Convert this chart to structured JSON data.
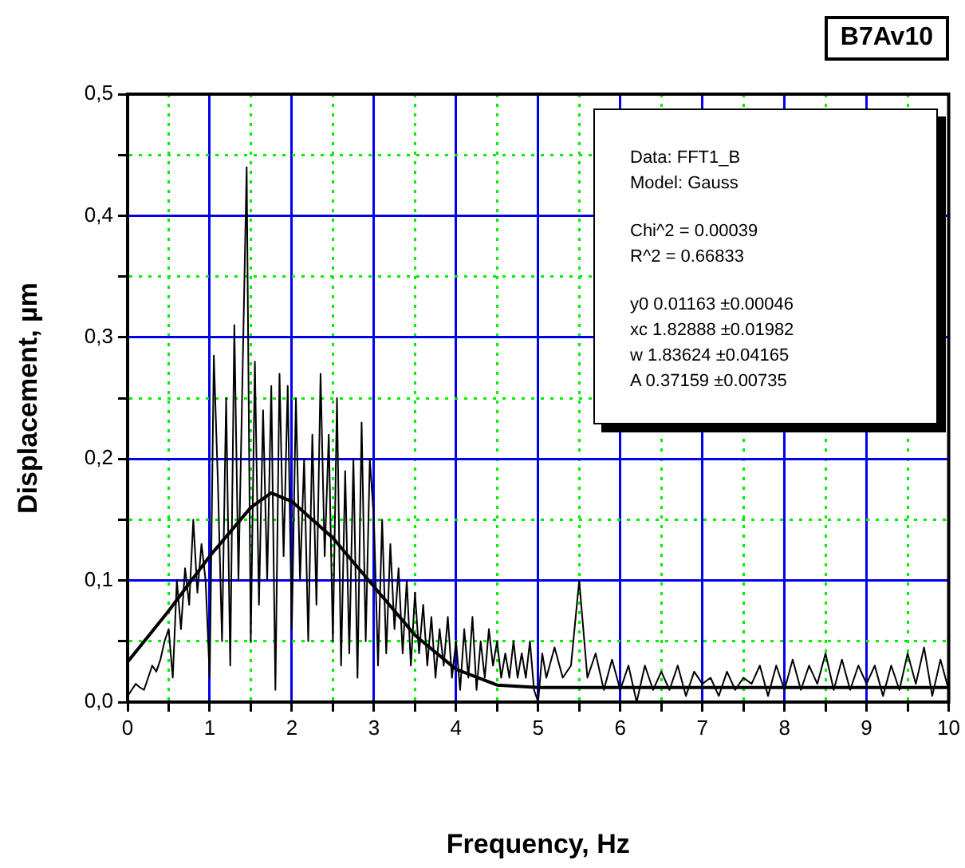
{
  "chart_data": {
    "type": "line",
    "title": "B7Av10",
    "xlabel": "Frequency, Hz",
    "ylabel": "Displacement, µm",
    "xlim": [
      0,
      10
    ],
    "xticks": [
      0,
      {
        "value": 0.5,
        "label": null
      },
      1,
      {
        "value": 1.5,
        "label": null
      },
      2,
      {
        "value": 2.5,
        "label": null
      },
      3,
      {
        "value": 3.5,
        "label": null
      },
      4,
      {
        "value": 4.5,
        "label": null
      },
      5,
      {
        "value": 5.5,
        "label": null
      },
      6,
      {
        "value": 6.5,
        "label": null
      },
      7,
      {
        "value": 7.5,
        "label": null
      },
      8,
      {
        "value": 8.5,
        "label": null
      },
      9,
      {
        "value": 9.5,
        "label": null
      },
      10
    ],
    "ylim": [
      0,
      0.5
    ],
    "yticks": [
      {
        "value": 0,
        "label": "0,0"
      },
      {
        "value": 0.05,
        "label": null
      },
      {
        "value": 0.1,
        "label": "0,1"
      },
      {
        "value": 0.15,
        "label": null
      },
      {
        "value": 0.2,
        "label": "0,2"
      },
      {
        "value": 0.25,
        "label": null
      },
      {
        "value": 0.3,
        "label": "0,3"
      },
      {
        "value": 0.35,
        "label": null
      },
      {
        "value": 0.4,
        "label": "0,4"
      },
      {
        "value": 0.45,
        "label": null
      },
      {
        "value": 0.5,
        "label": "0,5"
      }
    ],
    "grid": true,
    "legend": false,
    "marker": "none",
    "line_style": "solid",
    "annotations": [
      "Data: FFT1_B",
      "Model: Gauss",
      "Chi^2 = 0.00039",
      "R^2 = 0.66833",
      "y0 0.01163 ±0.00046",
      "xc 1.82888 ±0.01982",
      "w 1.83624 ±0.04165",
      "A 0.37159 ±0.00735"
    ],
    "series": [
      {
        "color": "#000000",
        "x": [
          0,
          0.05,
          0.1,
          0.15,
          0.2,
          0.25,
          0.3,
          0.35,
          0.4,
          0.45,
          0.5,
          0.55,
          0.6,
          0.65,
          0.7,
          0.75,
          0.8,
          0.85,
          0.9,
          0.95,
          1.0,
          1.05,
          1.1,
          1.15,
          1.2,
          1.25,
          1.3,
          1.35,
          1.4,
          1.45,
          1.5,
          1.55,
          1.6,
          1.65,
          1.7,
          1.75,
          1.8,
          1.85,
          1.9,
          1.95,
          2.0,
          2.05,
          2.1,
          2.15,
          2.2,
          2.25,
          2.3,
          2.35,
          2.4,
          2.45,
          2.5,
          2.55,
          2.6,
          2.65,
          2.7,
          2.75,
          2.8,
          2.85,
          2.9,
          2.95,
          3.0,
          3.05,
          3.1,
          3.15,
          3.2,
          3.25,
          3.3,
          3.35,
          3.4,
          3.45,
          3.5,
          3.55,
          3.6,
          3.65,
          3.7,
          3.75,
          3.8,
          3.85,
          3.9,
          3.95,
          4.0,
          4.05,
          4.1,
          4.15,
          4.2,
          4.25,
          4.3,
          4.35,
          4.4,
          4.45,
          4.5,
          4.55,
          4.6,
          4.65,
          4.7,
          4.75,
          4.8,
          4.85,
          4.9,
          4.95,
          5.0,
          5.05,
          5.1,
          5.2,
          5.3,
          5.4,
          5.5,
          5.6,
          5.7,
          5.8,
          5.9,
          6.0,
          6.1,
          6.2,
          6.3,
          6.4,
          6.5,
          6.6,
          6.7,
          6.8,
          6.9,
          7.0,
          7.1,
          7.2,
          7.3,
          7.4,
          7.5,
          7.6,
          7.7,
          7.8,
          7.9,
          8.0,
          8.1,
          8.2,
          8.3,
          8.4,
          8.5,
          8.6,
          8.7,
          8.8,
          8.9,
          9.0,
          9.1,
          9.2,
          9.3,
          9.4,
          9.5,
          9.6,
          9.7,
          9.8,
          9.9,
          10.0
        ],
        "values": [
          0.005,
          0.01,
          0.015,
          0.012,
          0.01,
          0.02,
          0.03,
          0.025,
          0.035,
          0.05,
          0.06,
          0.02,
          0.1,
          0.06,
          0.11,
          0.08,
          0.15,
          0.09,
          0.13,
          0.1,
          0.02,
          0.285,
          0.18,
          0.05,
          0.25,
          0.03,
          0.31,
          0.1,
          0.27,
          0.44,
          0.05,
          0.28,
          0.08,
          0.24,
          0.1,
          0.26,
          0.01,
          0.27,
          0.12,
          0.26,
          0.06,
          0.25,
          0.1,
          0.2,
          0.05,
          0.22,
          0.08,
          0.27,
          0.12,
          0.22,
          0.05,
          0.25,
          0.03,
          0.19,
          0.04,
          0.2,
          0.02,
          0.23,
          0.05,
          0.2,
          0.15,
          0.03,
          0.15,
          0.04,
          0.13,
          0.06,
          0.11,
          0.04,
          0.1,
          0.03,
          0.09,
          0.04,
          0.08,
          0.03,
          0.07,
          0.02,
          0.06,
          0.03,
          0.07,
          0.02,
          0.05,
          0.01,
          0.06,
          0.02,
          0.07,
          0.01,
          0.05,
          0.02,
          0.06,
          0.03,
          0.05,
          0.02,
          0.04,
          0.02,
          0.05,
          0.02,
          0.04,
          0.02,
          0.05,
          0.01,
          0.0,
          0.04,
          0.02,
          0.045,
          0.02,
          0.03,
          0.1,
          0.02,
          0.04,
          0.01,
          0.035,
          0.01,
          0.03,
          0.0,
          0.03,
          0.01,
          0.025,
          0.01,
          0.03,
          0.005,
          0.025,
          0.015,
          0.02,
          0.005,
          0.025,
          0.01,
          0.02,
          0.015,
          0.03,
          0.005,
          0.03,
          0.01,
          0.035,
          0.01,
          0.03,
          0.015,
          0.04,
          0.01,
          0.035,
          0.01,
          0.03,
          0.015,
          0.03,
          0.005,
          0.03,
          0.01,
          0.04,
          0.015,
          0.045,
          0.005,
          0.035,
          0.01
        ]
      },
      {
        "color": "#000000",
        "x": [
          0,
          0.5,
          1.0,
          1.5,
          1.75,
          2.0,
          2.5,
          3.0,
          3.5,
          4.0,
          4.5,
          5.0,
          6.0,
          7.0,
          8.0,
          9.0,
          10.0
        ],
        "values": [
          0.033,
          0.075,
          0.12,
          0.16,
          0.172,
          0.165,
          0.135,
          0.095,
          0.055,
          0.027,
          0.014,
          0.012,
          0.012,
          0.012,
          0.012,
          0.012,
          0.012
        ]
      }
    ]
  }
}
